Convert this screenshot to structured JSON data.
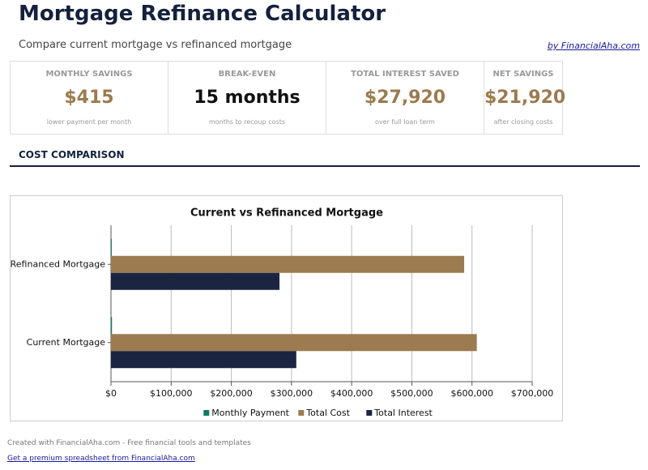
{
  "header": {
    "title": "Mortgage Refinance Calculator",
    "subtitle": "Compare current mortgage vs refinanced mortgage",
    "byline": "by FinancialAha.com"
  },
  "kpis": [
    {
      "label": "MONTHLY SAVINGS",
      "value": "$415",
      "note": "lower payment per month"
    },
    {
      "label": "BREAK-EVEN",
      "value": "15 months",
      "note": "months to recoup costs"
    },
    {
      "label": "TOTAL INTEREST SAVED",
      "value": "$27,920",
      "note": "over full loan term"
    },
    {
      "label": "NET SAVINGS",
      "value": "$21,920",
      "note": "after closing costs"
    }
  ],
  "section_title": "COST COMPARISON",
  "chart_data": {
    "type": "barh",
    "title": "Current vs Refinanced Mortgage",
    "categories": [
      "Current Mortgage",
      "Refinanced Mortgage"
    ],
    "series": [
      {
        "name": "Monthly Payment",
        "color": "#0f7b5f",
        "values": [
          1689,
          1274
        ]
      },
      {
        "name": "Total Cost",
        "color": "#9b7b4f",
        "values": [
          608000,
          587000
        ]
      },
      {
        "name": "Total Interest",
        "color": "#1b2541",
        "values": [
          308000,
          280080
        ]
      }
    ],
    "xlim": [
      0,
      700000
    ],
    "xticks": [
      {
        "value": 0,
        "label": "$0"
      },
      {
        "value": 100000,
        "label": "$100,000"
      },
      {
        "value": 200000,
        "label": "$200,000"
      },
      {
        "value": 300000,
        "label": "$300,000"
      },
      {
        "value": 400000,
        "label": "$400,000"
      },
      {
        "value": 500000,
        "label": "$500,000"
      },
      {
        "value": 600000,
        "label": "$600,000"
      },
      {
        "value": 700000,
        "label": "$700,000"
      }
    ],
    "grid": true,
    "legend": "bottom"
  },
  "footer": {
    "credit": "Created with FinancialAha.com - Free financial tools and templates",
    "link": "Get a premium spreadsheet from FinancialAha.com"
  }
}
